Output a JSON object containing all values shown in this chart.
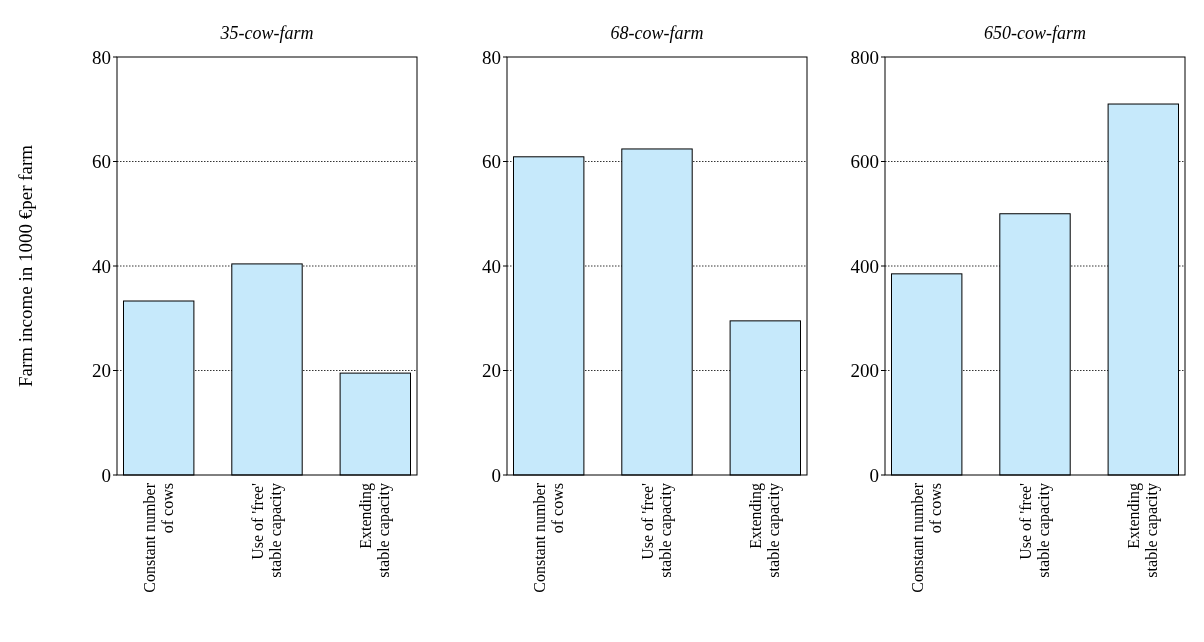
{
  "chart_data": [
    {
      "type": "bar",
      "title": "35-cow-farm",
      "ylabel": "Farm income in 1000 €per farm",
      "categories": [
        "Constant  number of cows",
        "Use of 'free' stable capacity",
        "Extending stable capacity"
      ],
      "values": [
        33.3,
        40.4,
        19.5
      ],
      "color": "#c6e9fb",
      "ylim": [
        0,
        80
      ],
      "yticks": [
        0,
        20,
        40,
        60,
        80
      ],
      "grid": "y"
    },
    {
      "type": "bar",
      "title": "68-cow-farm",
      "categories": [
        "Constant  number of cows",
        "Use of 'free' stable capacity",
        "Extending stable capacity"
      ],
      "values": [
        60.9,
        62.4,
        29.5
      ],
      "color": "#c6e9fb",
      "ylim": [
        0,
        80
      ],
      "yticks": [
        0,
        20,
        40,
        60,
        80
      ],
      "grid": "y"
    },
    {
      "type": "bar",
      "title": "650-cow-farm",
      "categories": [
        "Constant  number of cows",
        "Use of 'free' stable capacity",
        "Extending stable capacity"
      ],
      "values": [
        385,
        500,
        710
      ],
      "color": "#c6e9fb",
      "ylim": [
        0,
        800
      ],
      "yticks": [
        0,
        200,
        400,
        600,
        800
      ],
      "grid": "y"
    }
  ]
}
